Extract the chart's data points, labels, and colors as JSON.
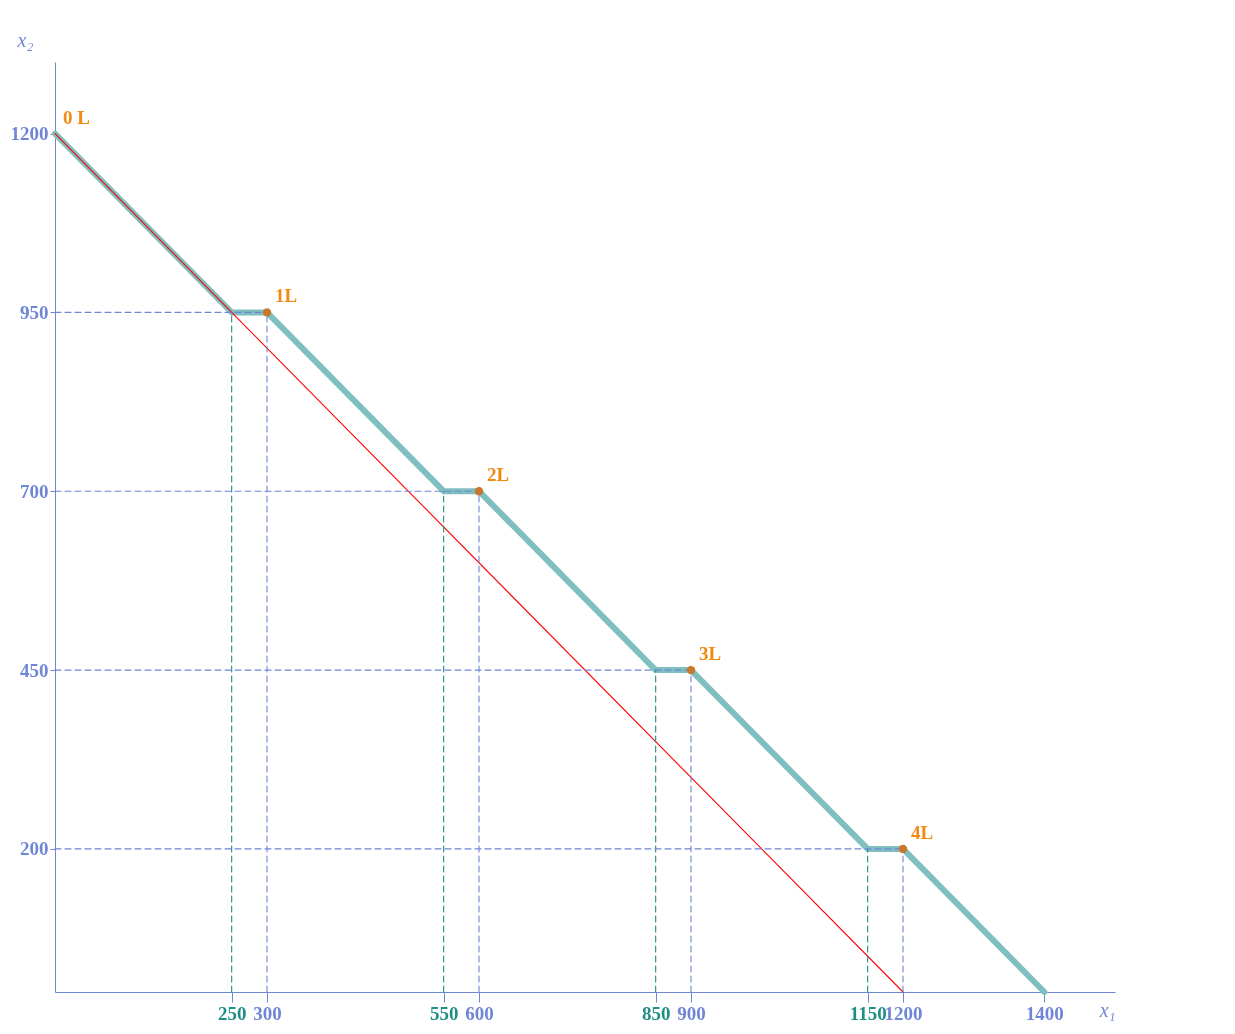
{
  "chart_data": {
    "type": "line",
    "xlabel": "x₁",
    "ylabel": "x₂",
    "xlim": [
      0,
      1500
    ],
    "ylim": [
      0,
      1300
    ],
    "xticks": [
      250,
      300,
      550,
      600,
      850,
      900,
      1150,
      1200,
      1400
    ],
    "yticks": [
      200,
      450,
      700,
      950,
      1200
    ],
    "grid": false,
    "series": [
      {
        "color": "#7fbfbf",
        "marker": "none",
        "x": [
          0,
          250,
          300,
          550,
          600,
          850,
          900,
          1150,
          1200,
          1400
        ],
        "values": [
          1200,
          950,
          950,
          700,
          700,
          450,
          450,
          200,
          200,
          0
        ]
      },
      {
        "type": "line",
        "color": "#ff0000",
        "marker": "none",
        "x": [
          0,
          1200
        ],
        "values": [
          1200,
          0
        ]
      },
      {
        "type": "line",
        "color": "#1f8f85",
        "line_style": "dashed",
        "marker": "none",
        "x": [
          250,
          250
        ],
        "values": [
          0,
          950
        ]
      },
      {
        "type": "line",
        "color": "#1f8f85",
        "line_style": "dashed",
        "marker": "none",
        "x": [
          550,
          550
        ],
        "values": [
          0,
          700
        ]
      },
      {
        "type": "line",
        "color": "#1f8f85",
        "line_style": "dashed",
        "marker": "none",
        "x": [
          850,
          850
        ],
        "values": [
          0,
          450
        ]
      },
      {
        "type": "line",
        "color": "#1f8f85",
        "line_style": "dashed",
        "marker": "none",
        "x": [
          1150,
          1150
        ],
        "values": [
          0,
          200
        ]
      },
      {
        "type": "line",
        "color": "#6f86d6",
        "line_style": "dashed",
        "marker": "none",
        "x": [
          300,
          300
        ],
        "values": [
          0,
          950
        ]
      },
      {
        "type": "line",
        "color": "#6f86d6",
        "line_style": "dashed",
        "marker": "none",
        "x": [
          600,
          600
        ],
        "values": [
          0,
          700
        ]
      },
      {
        "type": "line",
        "color": "#6f86d6",
        "line_style": "dashed",
        "marker": "none",
        "x": [
          900,
          900
        ],
        "values": [
          0,
          450
        ]
      },
      {
        "type": "line",
        "color": "#6f86d6",
        "line_style": "dashed",
        "marker": "none",
        "x": [
          1200,
          1200
        ],
        "values": [
          0,
          200
        ]
      },
      {
        "type": "line",
        "color": "#6f86d6",
        "line_style": "dashed",
        "marker": "none",
        "x": [
          0,
          300
        ],
        "values": [
          950,
          950
        ]
      },
      {
        "type": "line",
        "color": "#6f86d6",
        "line_style": "dashed",
        "marker": "none",
        "x": [
          0,
          600
        ],
        "values": [
          700,
          700
        ]
      },
      {
        "type": "line",
        "color": "#6f86d6",
        "line_style": "dashed",
        "marker": "none",
        "x": [
          0,
          900
        ],
        "values": [
          450,
          450
        ]
      },
      {
        "type": "line",
        "color": "#6f86d6",
        "line_style": "dashed",
        "marker": "none",
        "x": [
          0,
          1200
        ],
        "values": [
          200,
          200
        ]
      },
      {
        "type": "scatter",
        "color": "#c8782a",
        "marker": "circle",
        "x": [
          300,
          600,
          900,
          1200
        ],
        "values": [
          950,
          700,
          450,
          200
        ]
      }
    ],
    "annotations": [
      {
        "text": "0 L",
        "x": 0,
        "y": 1200
      },
      {
        "text": "1L",
        "x": 300,
        "y": 950
      },
      {
        "text": "2L",
        "x": 600,
        "y": 700
      },
      {
        "text": "3L",
        "x": 900,
        "y": 450
      },
      {
        "text": "4L",
        "x": 1200,
        "y": 200
      }
    ]
  }
}
